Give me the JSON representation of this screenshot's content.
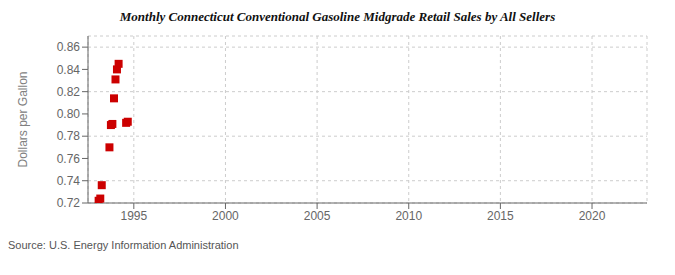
{
  "chart_data": {
    "type": "scatter",
    "title": "Monthly Connecticut Conventional Gasoline Midgrade Retail Sales by All Sellers",
    "y_label": "Dollars per Gallon",
    "annotations": [
      "Source: U.S. Energy Information Administration"
    ],
    "x": [
      1993.08,
      1993.17,
      1993.25,
      1993.67,
      1993.75,
      1993.83,
      1993.92,
      1994.0,
      1994.08,
      1994.17,
      1994.58,
      1994.67
    ],
    "values": [
      0.722,
      0.724,
      0.736,
      0.77,
      0.79,
      0.791,
      0.814,
      0.831,
      0.84,
      0.845,
      0.792,
      0.793
    ],
    "color": "#cc0000",
    "marker": "square",
    "xlim": [
      1992.5,
      2023
    ],
    "ylim": [
      0.72,
      0.87
    ],
    "xticks": [
      1995,
      2000,
      2005,
      2010,
      2015,
      2020
    ],
    "yticks": [
      0.72,
      0.74,
      0.76,
      0.78,
      {
        "value": 0.8,
        "label": "0.80"
      },
      0.82,
      0.84,
      0.86
    ],
    "grid": true
  }
}
